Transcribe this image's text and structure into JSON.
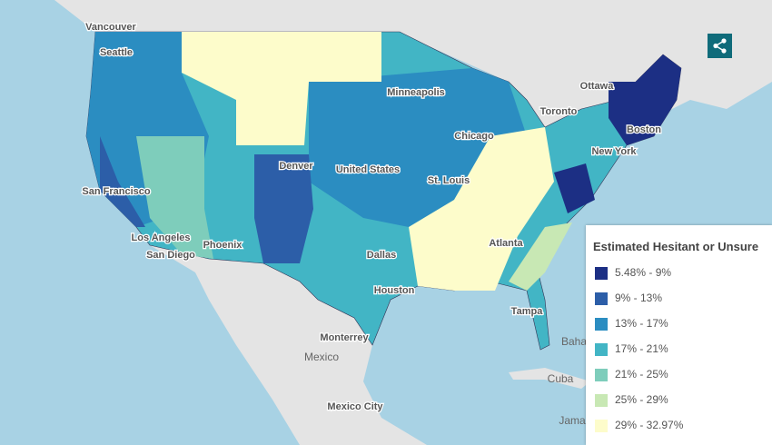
{
  "map": {
    "labels": [
      "Vancouver",
      "Seattle",
      "Ottawa",
      "Minneapolis",
      "Toronto",
      "Chicago",
      "Boston",
      "Denver",
      "United States",
      "New York",
      "San Francisco",
      "St. Louis",
      "Los Angeles",
      "Phoenix",
      "San Diego",
      "Atlanta",
      "Dallas",
      "Houston",
      "Tampa",
      "Monterrey",
      "Mexico",
      "Baha",
      "Cuba",
      "Mexico City",
      "Jama"
    ]
  },
  "legend": {
    "title": "Estimated Hesitant or Unsure",
    "items": [
      {
        "label": "5.48% - 9%",
        "color": "#1c2f84"
      },
      {
        "label": "9% - 13%",
        "color": "#2c5ea8"
      },
      {
        "label": "13% - 17%",
        "color": "#2b8dc1"
      },
      {
        "label": "17% - 21%",
        "color": "#42b5c5"
      },
      {
        "label": "21% - 25%",
        "color": "#7ecdbb"
      },
      {
        "label": "25% - 29%",
        "color": "#c8e8b4"
      },
      {
        "label": "29% - 32.97%",
        "color": "#fdfccb"
      }
    ]
  }
}
